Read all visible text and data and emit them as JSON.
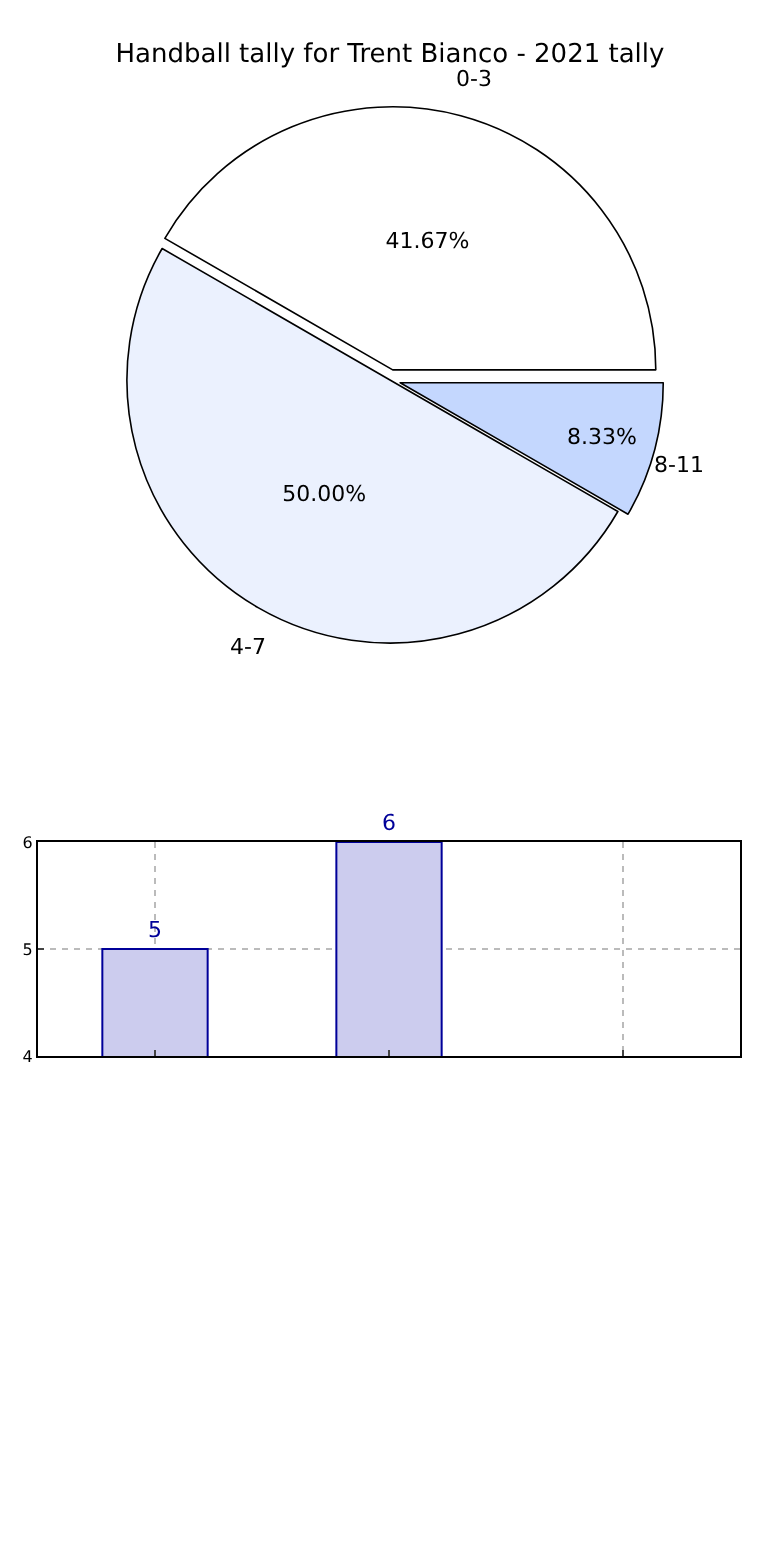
{
  "chart_data": [
    {
      "type": "pie",
      "title": "Handball tally for Trent Bianco - 2021 tally",
      "categories": [
        "0-3",
        "4-7",
        "8-11"
      ],
      "values": [
        41.67,
        50.0,
        8.33
      ],
      "colors": [
        "#ffffff",
        "#ebf1fe",
        "#c4d7fe"
      ],
      "value_labels": [
        "41.67%",
        "50.00%",
        "8.33%"
      ],
      "legend": false
    },
    {
      "type": "bar",
      "categories": [
        null,
        null,
        null
      ],
      "values": [
        5,
        6,
        null
      ],
      "color": "#ccccee",
      "ylim": [
        4,
        6
      ],
      "yticks": [
        4,
        5,
        6
      ],
      "grid": true,
      "data_labels": true,
      "legend": false
    }
  ]
}
